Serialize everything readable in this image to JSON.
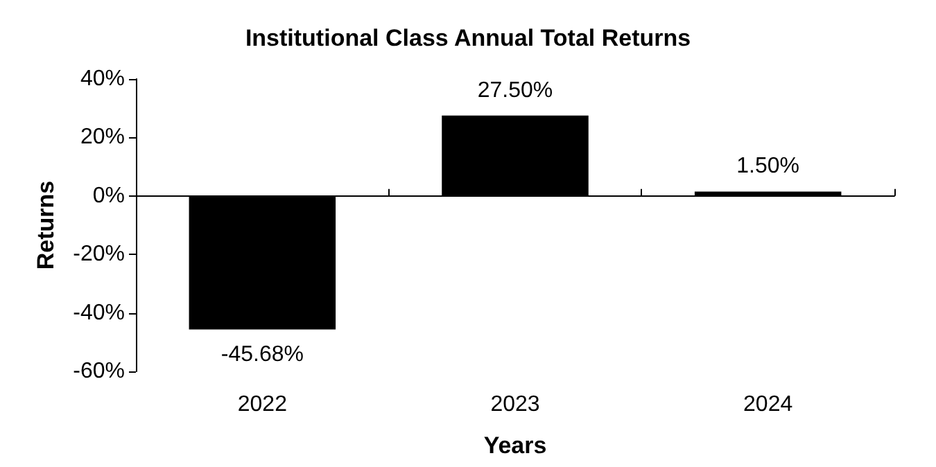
{
  "chart_data": {
    "type": "bar",
    "title": "Institutional Class Annual Total Returns",
    "xlabel": "Years",
    "ylabel": "Returns",
    "categories": [
      "2022",
      "2023",
      "2024"
    ],
    "values": [
      -45.68,
      27.5,
      1.5
    ],
    "value_labels": [
      "-45.68%",
      "27.50%",
      "1.50%"
    ],
    "color": "#000000",
    "ylim": [
      -60,
      40
    ],
    "yticks": [
      {
        "value": -60,
        "label": "-60%"
      },
      {
        "value": -40,
        "label": "-40%"
      },
      {
        "value": -20,
        "label": "-20%"
      },
      {
        "value": 0,
        "label": "0%"
      },
      {
        "value": 20,
        "label": "20%"
      },
      {
        "value": 40,
        "label": "40%"
      }
    ],
    "data_labels": false
  }
}
